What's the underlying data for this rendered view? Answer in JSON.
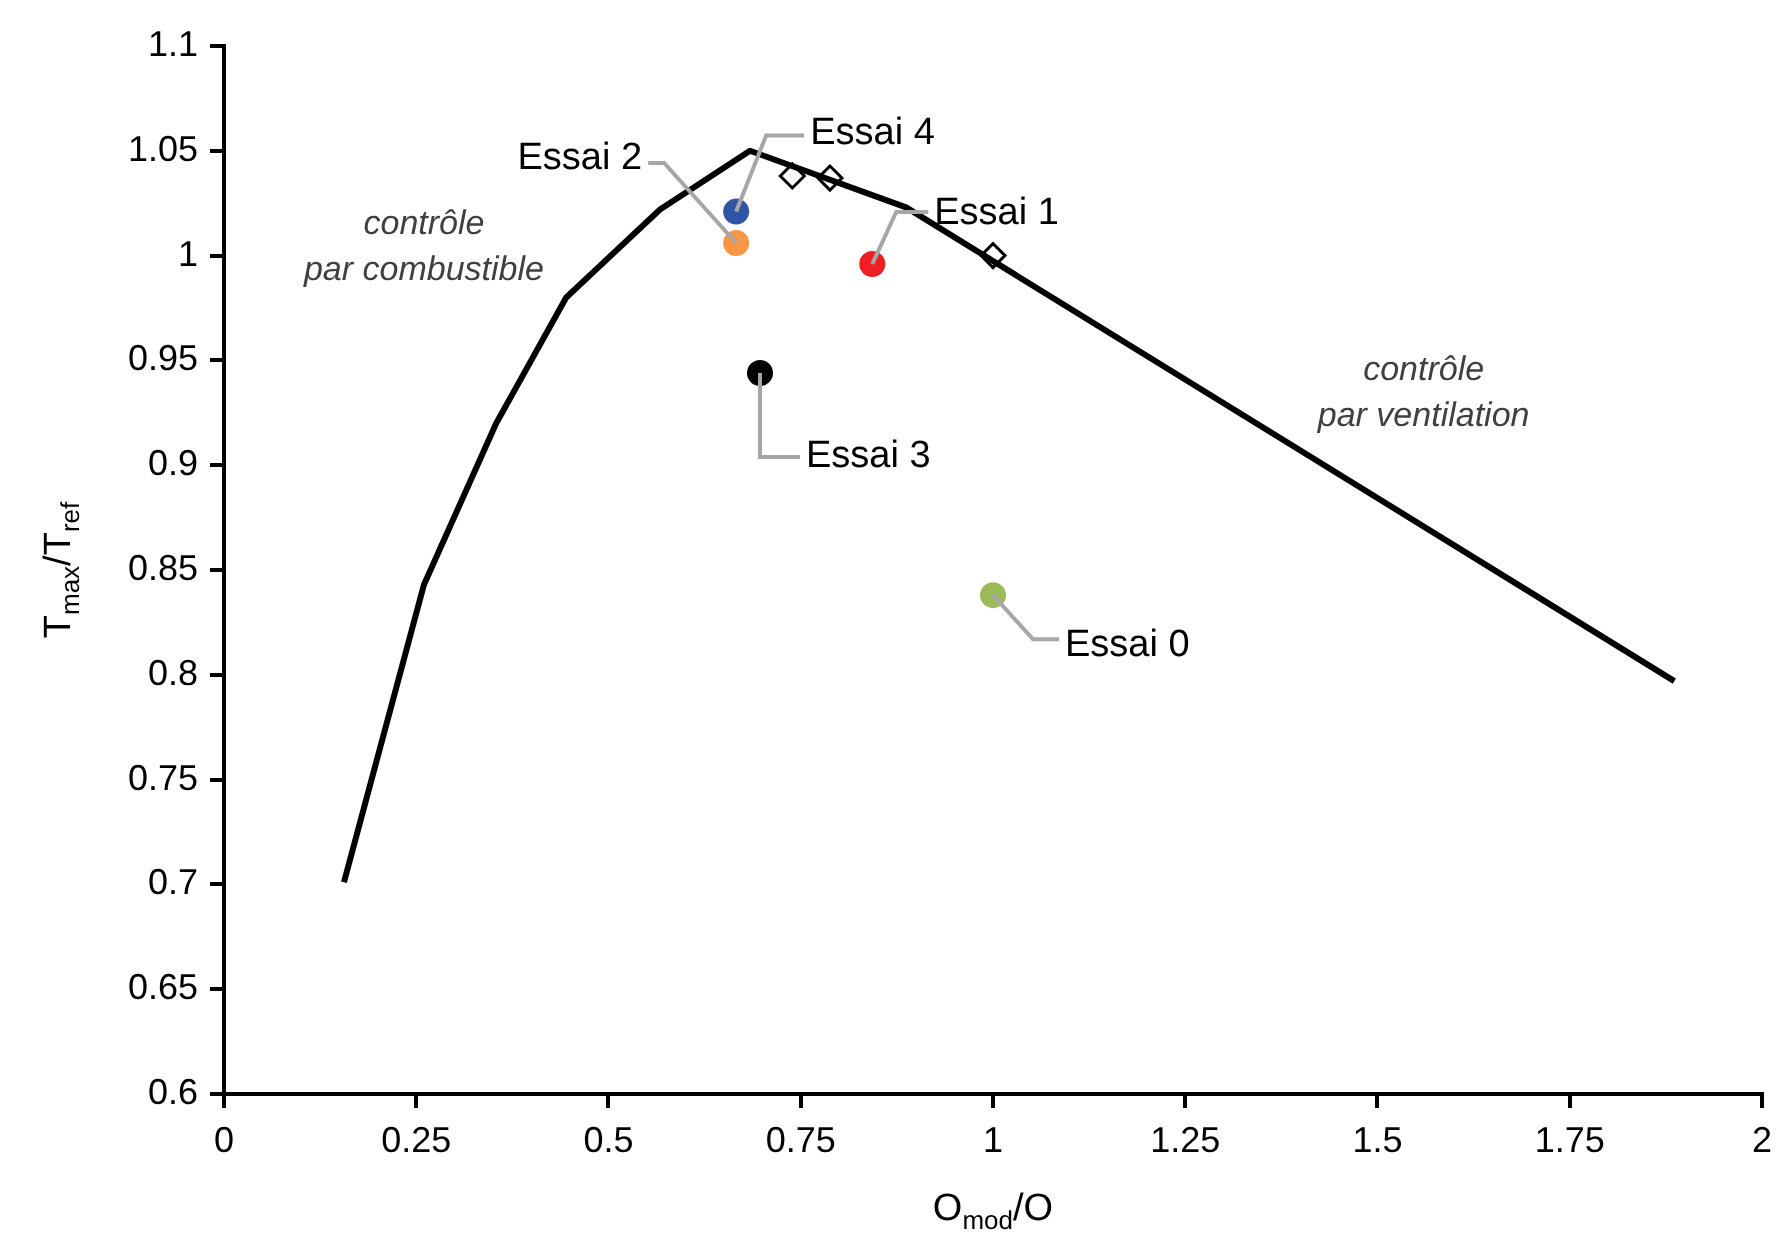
{
  "chart_data": {
    "type": "scatter",
    "xlabel": "O$_{mod}$/O",
    "ylabel": "T$_{max}$/T$_{ref}$",
    "xlim": [
      0,
      2
    ],
    "ylim": [
      0.6,
      1.1
    ],
    "xticks": [
      0,
      0.25,
      0.5,
      0.75,
      1,
      1.25,
      1.5,
      1.75,
      2
    ],
    "yticks": [
      0.6,
      0.65,
      0.7,
      0.75,
      0.8,
      0.85,
      0.9,
      0.95,
      1,
      1.05,
      1.1
    ],
    "grid": false,
    "legend": false,
    "annotations": [
      "contrôle\npar combustible",
      "contrôle\npar ventilation"
    ],
    "series": [
      {
        "type": "line",
        "color": "#000000",
        "marker": "none",
        "x": [
          0.156,
          0.26,
          0.354,
          0.445,
          0.567,
          0.684,
          0.887,
          1.886
        ],
        "values": [
          0.701,
          0.843,
          0.92,
          0.98,
          1.022,
          1.05,
          1.023,
          0.797
        ]
      },
      {
        "type": "scatter",
        "color": "#000000",
        "marker": "diamond",
        "x": [
          0.739,
          0.788,
          1.0
        ],
        "values": [
          1.038,
          1.037,
          1.0
        ]
      },
      {
        "name": "Essai 0",
        "color": "#9bbb59",
        "x": [
          1.0
        ],
        "values": [
          0.838
        ]
      },
      {
        "name": "Essai 1",
        "color": "#ee2024",
        "x": [
          0.843
        ],
        "values": [
          0.996
        ]
      },
      {
        "name": "Essai 2",
        "color": "#f79646",
        "x": [
          0.666
        ],
        "values": [
          1.006
        ]
      },
      {
        "name": "Essai 3",
        "color": "#000000",
        "x": [
          0.697
        ],
        "values": [
          0.944
        ]
      },
      {
        "name": "Essai 4",
        "color": "#2f55a4",
        "x": [
          0.666
        ],
        "values": [
          1.021
        ]
      }
    ]
  }
}
